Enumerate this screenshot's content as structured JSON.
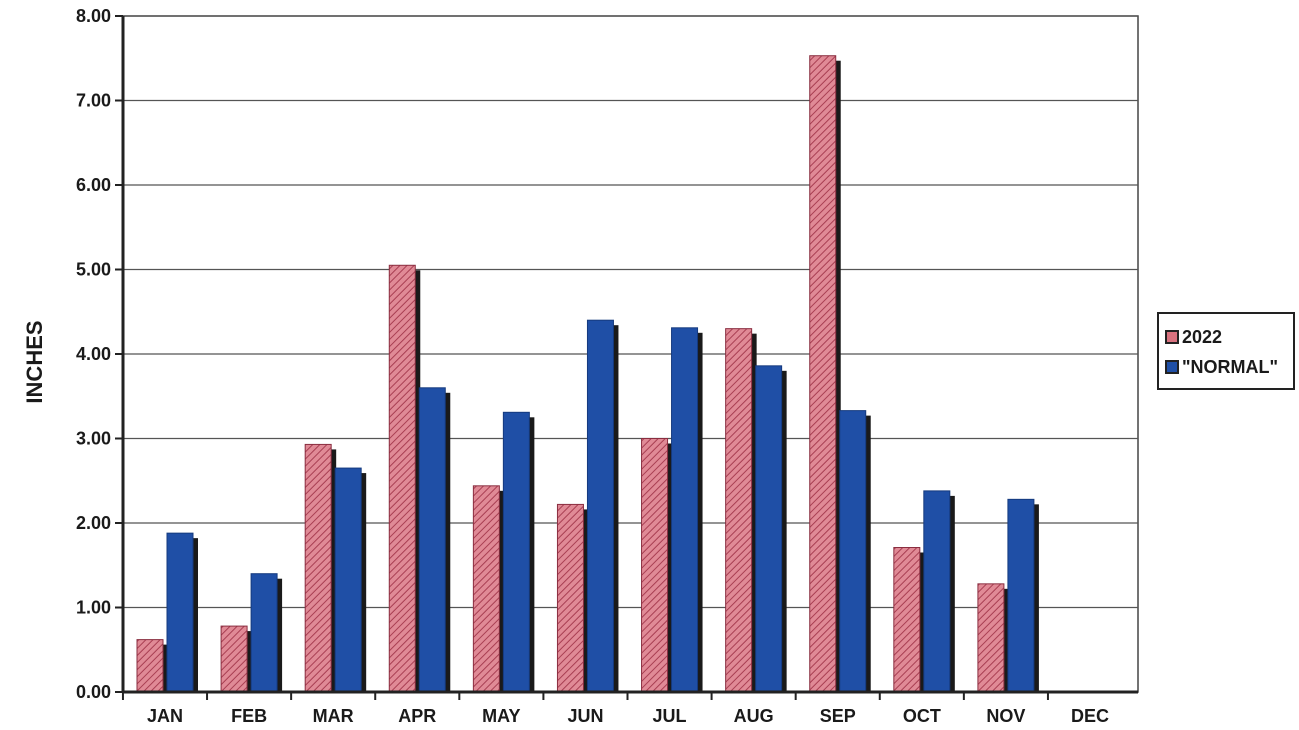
{
  "chart_data": {
    "type": "bar",
    "title": "",
    "xlabel": "",
    "ylabel": "INCHES",
    "ylim": [
      0,
      8
    ],
    "yticks": [
      "0.00",
      "1.00",
      "2.00",
      "3.00",
      "4.00",
      "5.00",
      "6.00",
      "7.00",
      "8.00"
    ],
    "categories": [
      "JAN",
      "FEB",
      "MAR",
      "APR",
      "MAY",
      "JUN",
      "JUL",
      "AUG",
      "SEP",
      "OCT",
      "NOV",
      "DEC"
    ],
    "series": [
      {
        "name": "2022",
        "color": "#d9727f",
        "values": [
          0.62,
          0.78,
          2.93,
          5.05,
          2.44,
          2.22,
          3.0,
          4.3,
          7.53,
          1.71,
          1.28,
          null
        ]
      },
      {
        "name": "\"NORMAL\"",
        "color": "#1f4fa6",
        "values": [
          1.88,
          1.4,
          2.65,
          3.6,
          3.31,
          4.4,
          4.31,
          3.86,
          3.33,
          2.38,
          2.28,
          null
        ]
      }
    ],
    "grid": true,
    "legend_position": "right"
  },
  "legend": {
    "items": [
      {
        "label": "2022",
        "color": "#d9727f"
      },
      {
        "label": "\"NORMAL\"",
        "color": "#1f4fa6"
      }
    ]
  }
}
